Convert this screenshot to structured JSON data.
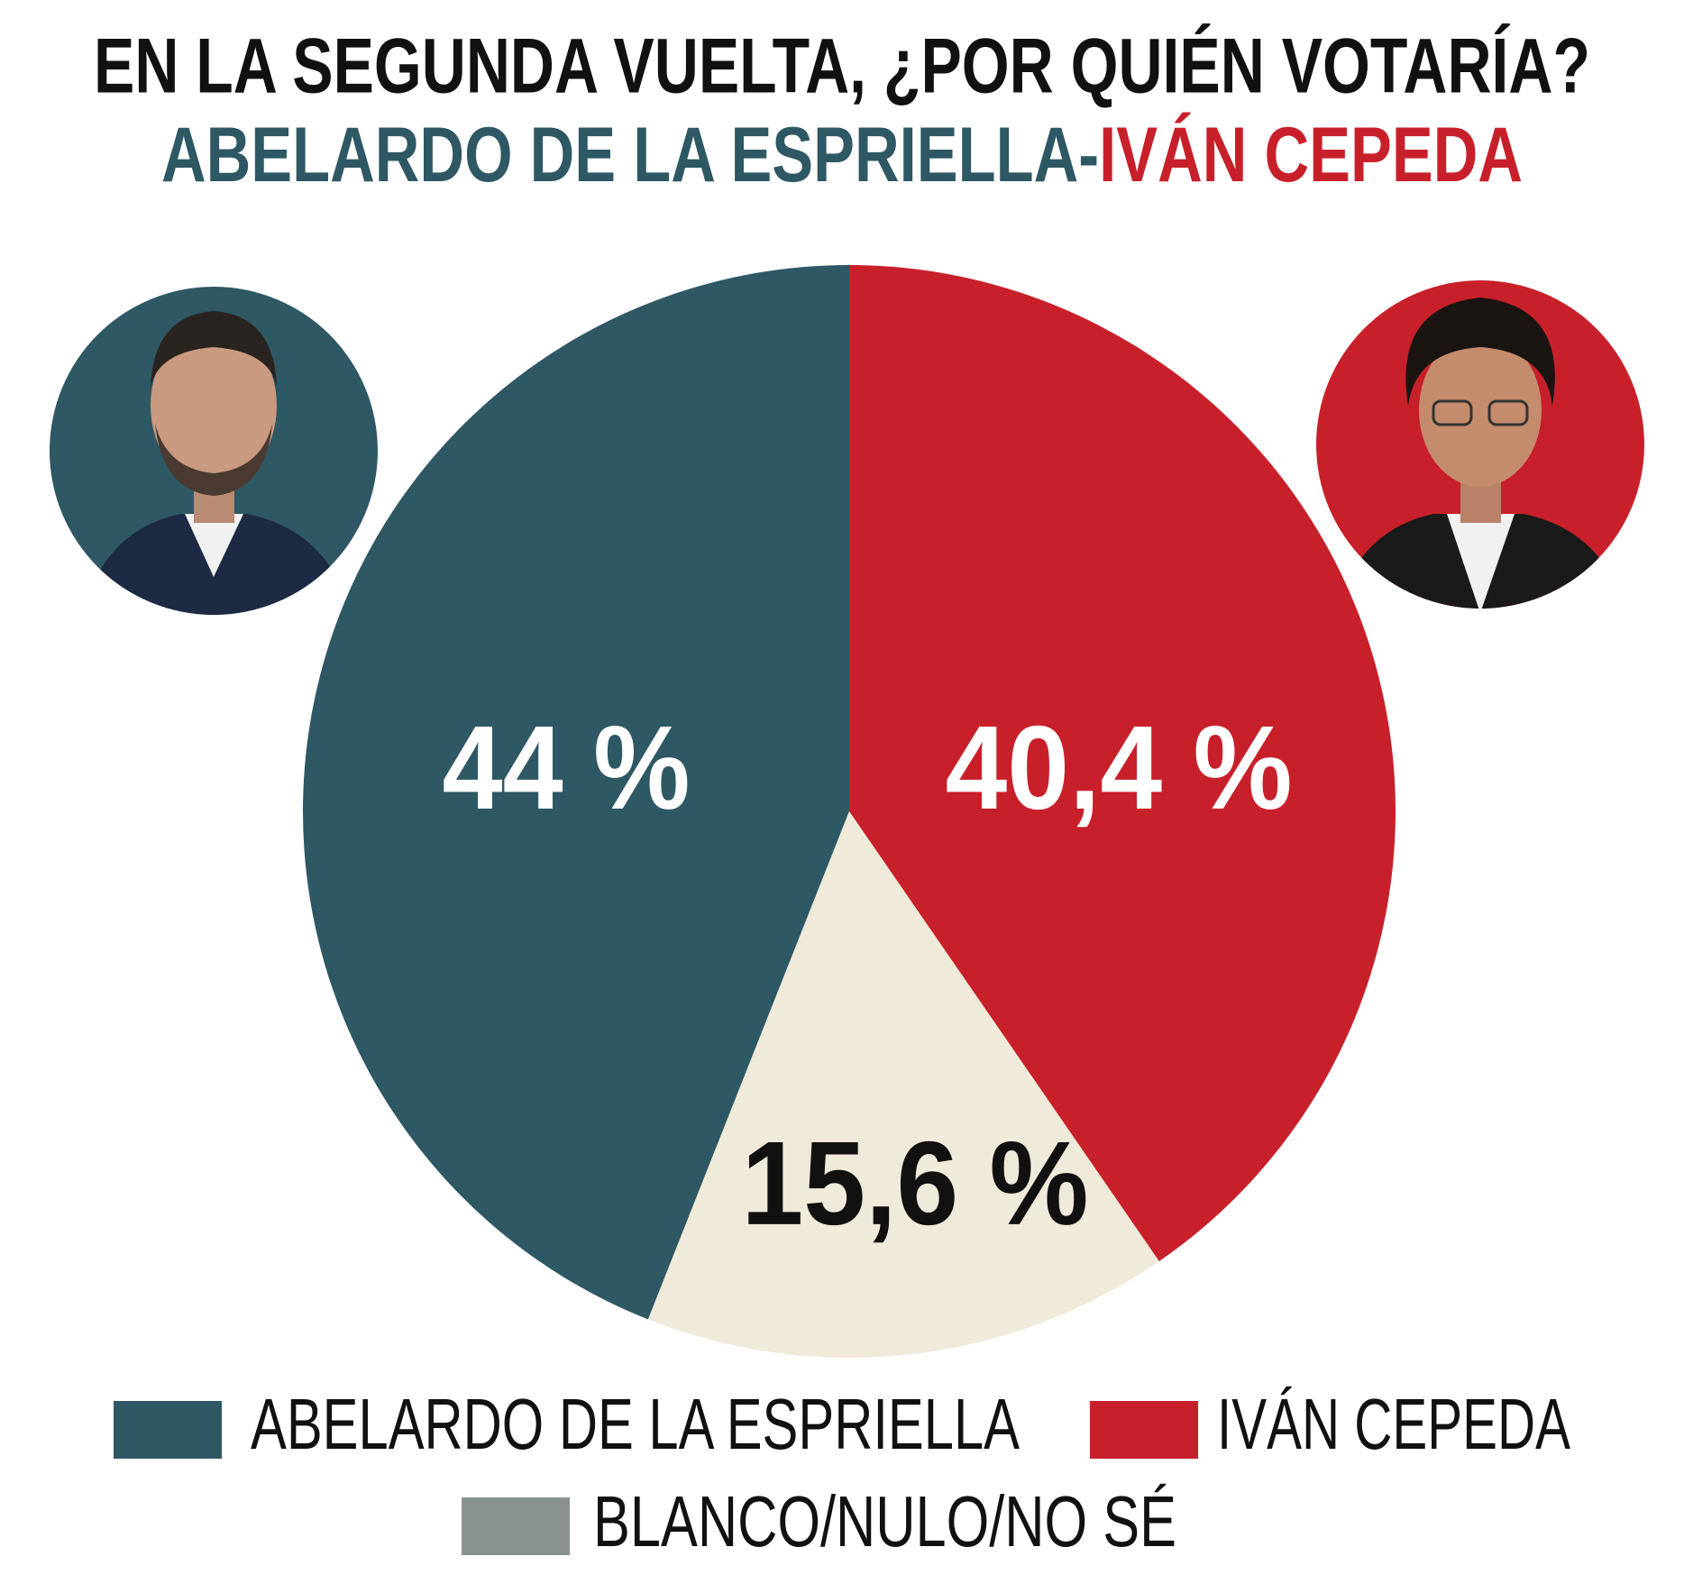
{
  "chart_data": {
    "type": "pie",
    "title": "EN LA SEGUNDA VUELTA, ¿POR QUIÉN VOTARÍA?",
    "subtitle_parts": [
      "ABELARDO DE LA ESPRIELLA",
      "-",
      "IVÁN CEPEDA"
    ],
    "subtitle_colors": [
      "#2e5864",
      "#2e5864",
      "#c8202a"
    ],
    "categories": [
      "ABELARDO DE LA ESPRIELLA",
      "IVÁN CEPEDA",
      "BLANCO/NULO/NO SÉ"
    ],
    "values": [
      44,
      40.4,
      15.6
    ],
    "value_labels": [
      "44 %",
      "40,4 %",
      "15,6 %"
    ],
    "colors": [
      "#2e5864",
      "#c8202a",
      "#efead9"
    ],
    "label_colors": [
      "#ffffff",
      "#ffffff",
      "#111111"
    ],
    "legend_colors": [
      "#2e5864",
      "#c8202a",
      "#8a9191"
    ]
  }
}
